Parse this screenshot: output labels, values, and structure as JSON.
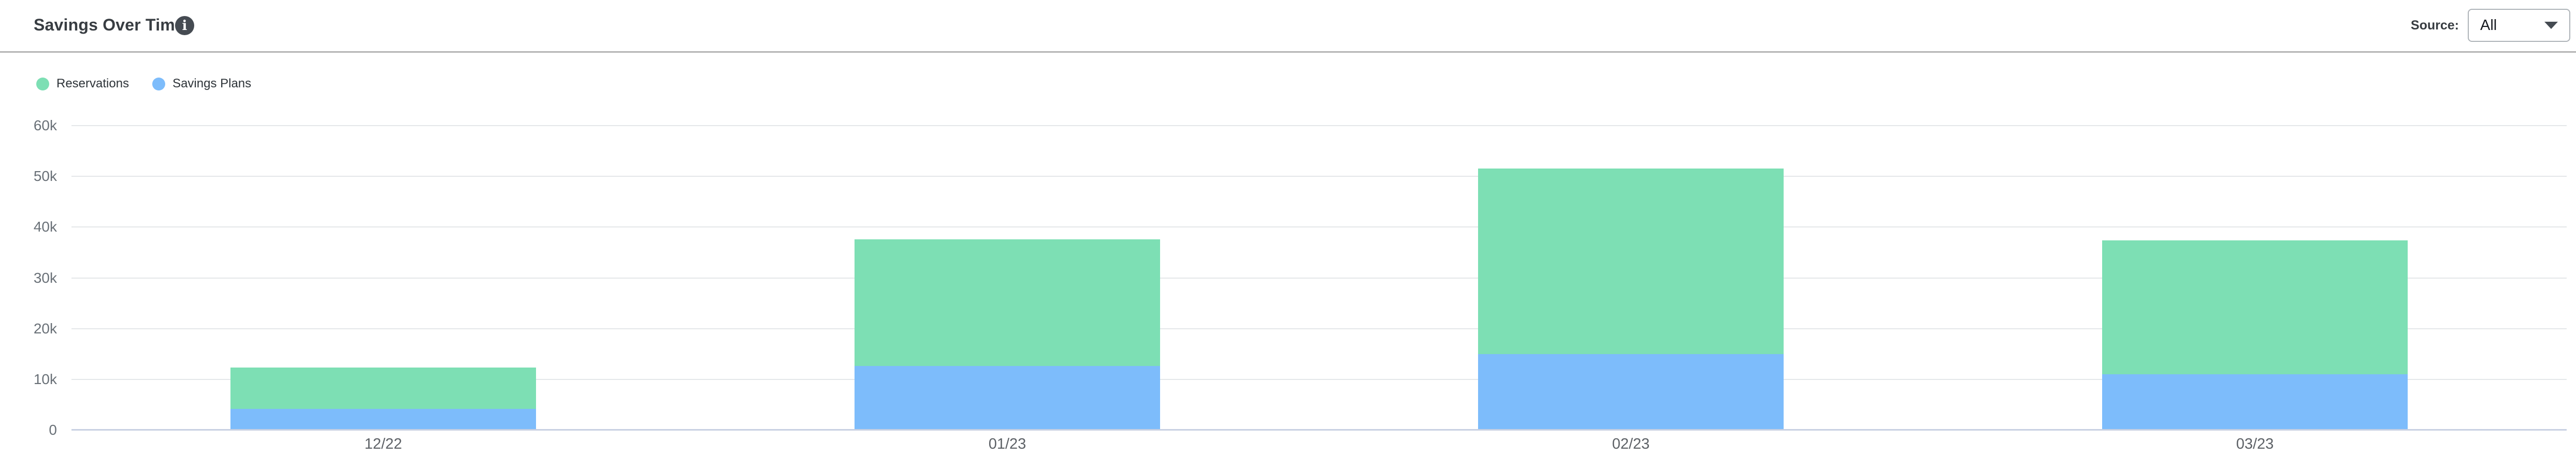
{
  "header": {
    "title": "Savings Over Time",
    "source_label": "Source:",
    "source_value": "All"
  },
  "legend": [
    {
      "label": "Reservations",
      "color": "#7DDFB4"
    },
    {
      "label": "Savings Plans",
      "color": "#7DBCFB"
    }
  ],
  "chart_data": {
    "type": "bar",
    "stacked": true,
    "categories": [
      "12/22",
      "01/23",
      "02/23",
      "03/23"
    ],
    "series": [
      {
        "name": "Reservations",
        "color": "#7DDFB4",
        "values": [
          8100,
          25000,
          36500,
          26400
        ]
      },
      {
        "name": "Savings Plans",
        "color": "#7DBCFB",
        "values": [
          4200,
          12600,
          15000,
          11000
        ]
      }
    ],
    "stack_bottom_to_top": [
      "Savings Plans",
      "Reservations"
    ],
    "title": "Savings Over Time",
    "xlabel": "",
    "ylabel": "",
    "ylim": [
      0,
      60000
    ],
    "yticks": [
      {
        "value": 0,
        "label": "0"
      },
      {
        "value": 10000,
        "label": "10k"
      },
      {
        "value": 20000,
        "label": "20k"
      },
      {
        "value": 30000,
        "label": "30k"
      },
      {
        "value": 40000,
        "label": "40k"
      },
      {
        "value": 50000,
        "label": "50k"
      },
      {
        "value": 60000,
        "label": "60k"
      }
    ],
    "grid": true,
    "legend_position": "top-left"
  },
  "colors": {
    "reservations": "#7DDFB4",
    "savings_plans": "#7DBCFB",
    "gridline": "#e4e7e9",
    "zero_line": "#c8d0e2",
    "divider": "#b5b5b5",
    "axis_text": "#697077",
    "title_text": "#383d42"
  }
}
